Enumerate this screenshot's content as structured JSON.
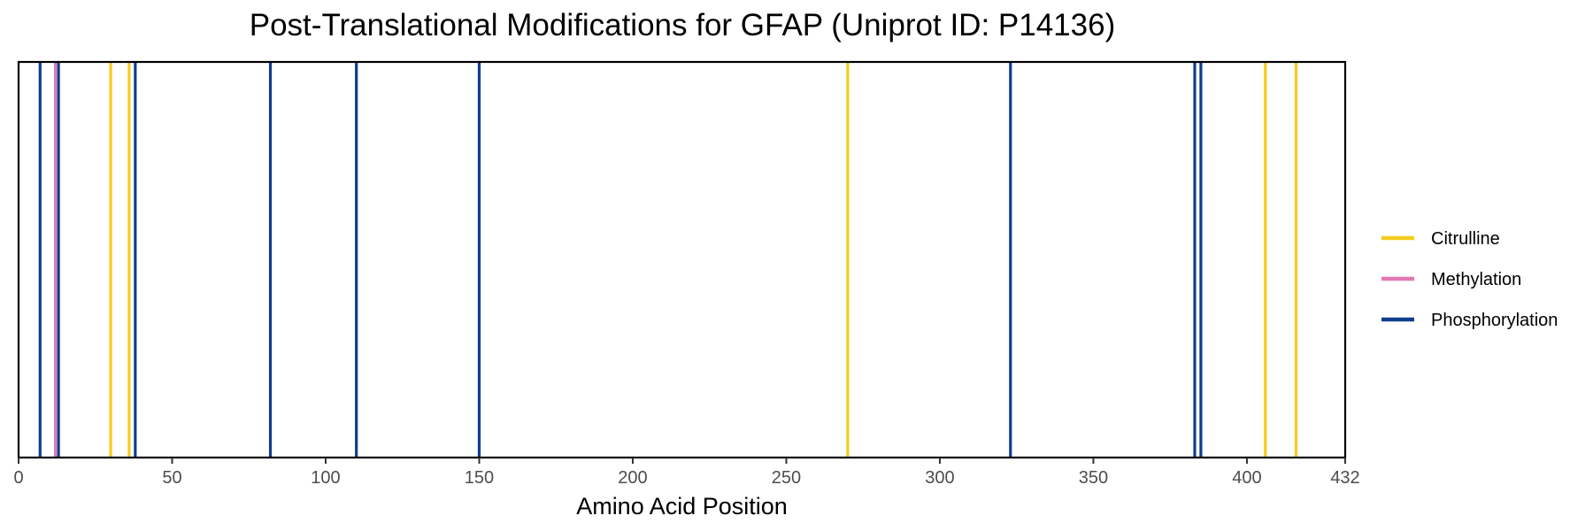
{
  "chart_data": {
    "type": "vertical-line-marks",
    "title": "Post-Translational Modifications for GFAP (Uniprot ID: P14136)",
    "xlabel": "Amino Acid Position",
    "ylabel": "",
    "xlim": [
      0,
      432
    ],
    "x_ticks": [
      0,
      50,
      100,
      150,
      200,
      250,
      300,
      350,
      400,
      432
    ],
    "grid": false,
    "legend_position": "right",
    "series": [
      {
        "name": "Citrulline",
        "color": "#F5CC1E",
        "positions": [
          30,
          36,
          270,
          406,
          416
        ]
      },
      {
        "name": "Methylation",
        "color": "#E377B5",
        "positions": [
          12
        ]
      },
      {
        "name": "Phosphorylation",
        "color": "#0F3E8C",
        "positions": [
          7,
          13,
          38,
          82,
          110,
          150,
          323,
          383,
          385
        ]
      }
    ]
  }
}
